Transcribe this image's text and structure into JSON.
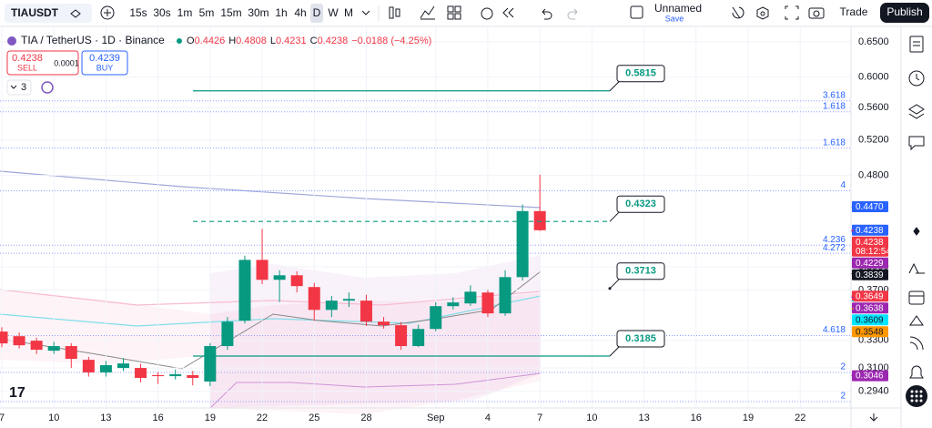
{
  "toolbar": {
    "symbol": "TIAUSDT",
    "intervals": [
      "15s",
      "30s",
      "1m",
      "5m",
      "15m",
      "30m",
      "1h",
      "4h",
      "D",
      "W",
      "M"
    ],
    "layout_name": "Unnamed",
    "save": "Save",
    "trade": "Trade",
    "publish": "Publish"
  },
  "legend": {
    "title": "TIA / TetherUS · 1D · Binance",
    "ohlc": [
      {
        "key": "O",
        "value": "0.4426"
      },
      {
        "key": "H",
        "value": "0.4808"
      },
      {
        "key": "L",
        "value": "0.4231"
      },
      {
        "key": "C",
        "value": "0.4238"
      }
    ],
    "change": "−0.0188 (−4.25%)"
  },
  "trade_box": {
    "sell_price": "0.4238",
    "sell": "SELL",
    "spread": "0.0001",
    "buy_price": "0.4239",
    "buy": "BUY"
  },
  "indicator_count": "3",
  "chart": {
    "log_scale": true,
    "ylim": [
      0.2831,
      0.6717
    ],
    "yticks": [
      {
        "value": 0.65,
        "label": "0.6500"
      },
      {
        "value": 0.6,
        "label": "0.6000"
      },
      {
        "value": 0.56,
        "label": "0.5600"
      },
      {
        "value": 0.52,
        "label": "0.5200"
      },
      {
        "value": 0.48,
        "label": "0.4800"
      },
      {
        "value": 0.39,
        "label": "0.3900"
      },
      {
        "value": 0.37,
        "label": "0.3700"
      },
      {
        "value": 0.33,
        "label": "0.3300"
      },
      {
        "value": 0.31,
        "label": "0.3100"
      },
      {
        "value": 0.294,
        "label": "0.2940"
      }
    ],
    "date_labels": [
      "7",
      "10",
      "13",
      "16",
      "19",
      "22",
      "25",
      "28",
      "Sep",
      "4",
      "7",
      "10",
      "13",
      "16",
      "19",
      "22"
    ],
    "candles": [
      {
        "open": 0.3367,
        "high": 0.34,
        "low": 0.325,
        "close": 0.3278
      },
      {
        "open": 0.3332,
        "high": 0.336,
        "low": 0.324,
        "close": 0.3264
      },
      {
        "open": 0.3298,
        "high": 0.332,
        "low": 0.32,
        "close": 0.3231
      },
      {
        "open": 0.3224,
        "high": 0.329,
        "low": 0.32,
        "close": 0.3258
      },
      {
        "open": 0.3258,
        "high": 0.328,
        "low": 0.31,
        "close": 0.3165
      },
      {
        "open": 0.3158,
        "high": 0.318,
        "low": 0.304,
        "close": 0.3069
      },
      {
        "open": 0.3069,
        "high": 0.315,
        "low": 0.304,
        "close": 0.312
      },
      {
        "open": 0.31,
        "high": 0.317,
        "low": 0.308,
        "close": 0.3132
      },
      {
        "open": 0.31,
        "high": 0.313,
        "low": 0.3,
        "close": 0.3031
      },
      {
        "open": 0.305,
        "high": 0.307,
        "low": 0.299,
        "close": 0.3043
      },
      {
        "open": 0.3043,
        "high": 0.309,
        "low": 0.302,
        "close": 0.3056
      },
      {
        "open": 0.305,
        "high": 0.308,
        "low": 0.298,
        "close": 0.3031
      },
      {
        "open": 0.3006,
        "high": 0.328,
        "low": 0.2975,
        "close": 0.3258
      },
      {
        "open": 0.3258,
        "high": 0.348,
        "low": 0.323,
        "close": 0.3444
      },
      {
        "open": 0.3451,
        "high": 0.4,
        "low": 0.343,
        "close": 0.3962
      },
      {
        "open": 0.3962,
        "high": 0.425,
        "low": 0.375,
        "close": 0.3787
      },
      {
        "open": 0.3787,
        "high": 0.387,
        "low": 0.36,
        "close": 0.3826
      },
      {
        "open": 0.3826,
        "high": 0.386,
        "low": 0.368,
        "close": 0.3733
      },
      {
        "open": 0.3725,
        "high": 0.376,
        "low": 0.345,
        "close": 0.3537
      },
      {
        "open": 0.3537,
        "high": 0.365,
        "low": 0.348,
        "close": 0.3612
      },
      {
        "open": 0.3612,
        "high": 0.368,
        "low": 0.356,
        "close": 0.3626
      },
      {
        "open": 0.3612,
        "high": 0.366,
        "low": 0.341,
        "close": 0.3444
      },
      {
        "open": 0.3444,
        "high": 0.348,
        "low": 0.339,
        "close": 0.3416
      },
      {
        "open": 0.3416,
        "high": 0.344,
        "low": 0.323,
        "close": 0.3258
      },
      {
        "open": 0.3258,
        "high": 0.342,
        "low": 0.325,
        "close": 0.3387
      },
      {
        "open": 0.3387,
        "high": 0.36,
        "low": 0.337,
        "close": 0.3567
      },
      {
        "open": 0.3567,
        "high": 0.364,
        "low": 0.354,
        "close": 0.3597
      },
      {
        "open": 0.3589,
        "high": 0.374,
        "low": 0.357,
        "close": 0.3686
      },
      {
        "open": 0.3679,
        "high": 0.37,
        "low": 0.348,
        "close": 0.3509
      },
      {
        "open": 0.3509,
        "high": 0.387,
        "low": 0.349,
        "close": 0.381
      },
      {
        "open": 0.381,
        "high": 0.4493,
        "low": 0.378,
        "close": 0.4426
      },
      {
        "open": 0.4426,
        "high": 0.4808,
        "low": 0.4231,
        "close": 0.4238
      }
    ],
    "fib_levels": [
      {
        "label": "3.618",
        "price": 0.5684
      },
      {
        "label": "1.618",
        "price": 0.5545
      },
      {
        "label": "1.618",
        "price": 0.5106
      },
      {
        "label": "4",
        "price": 0.4635
      },
      {
        "label": "4.236",
        "price": 0.4096
      },
      {
        "label": "4.272",
        "price": 0.4022
      },
      {
        "label": "4.618",
        "price": 0.3337
      },
      {
        "label": "2",
        "price": 0.3069
      },
      {
        "label": "2",
        "price": 0.2872
      }
    ],
    "annotations": [
      {
        "value": 0.5815,
        "label": "0.5815",
        "style": "solid"
      },
      {
        "value": 0.4323,
        "label": "0.4323",
        "style": "dashed"
      },
      {
        "value": 0.3713,
        "label": "0.3713",
        "style": "none"
      },
      {
        "value": 0.3185,
        "label": "0.3185",
        "style": "solid"
      }
    ],
    "price_badges": [
      {
        "value": 0.447,
        "label": "0.4470",
        "color": "#2962ff",
        "text_color": "#ffffff"
      },
      {
        "value": 0.4238,
        "label": "0.4238",
        "color": "#2962ff",
        "text_color": "#ffffff"
      },
      {
        "value": 0.4238,
        "label": "0.4238",
        "color": "#f23645",
        "text_color": "#ffffff",
        "countdown": "08:12:54"
      },
      {
        "value": 0.4229,
        "label": "0.4229",
        "color": "#9c27b0",
        "text_color": "#ffffff"
      },
      {
        "value": 0.3839,
        "label": "0.3839",
        "color": "#131722",
        "text_color": "#ffffff"
      },
      {
        "value": 0.3649,
        "label": "0.3649",
        "color": "#f23645",
        "text_color": "#ffffff"
      },
      {
        "value": 0.3638,
        "label": "0.3638",
        "color": "#9c27b0",
        "text_color": "#ffffff"
      },
      {
        "value": 0.3609,
        "label": "0.3609",
        "color": "#00e5ff",
        "text_color": "#131722"
      },
      {
        "value": 0.3548,
        "label": "0.3548",
        "color": "#ff9800",
        "text_color": "#131722"
      },
      {
        "value": 0.3046,
        "label": "0.3046",
        "color": "#9c27b0",
        "text_color": "#ffffff"
      }
    ]
  }
}
